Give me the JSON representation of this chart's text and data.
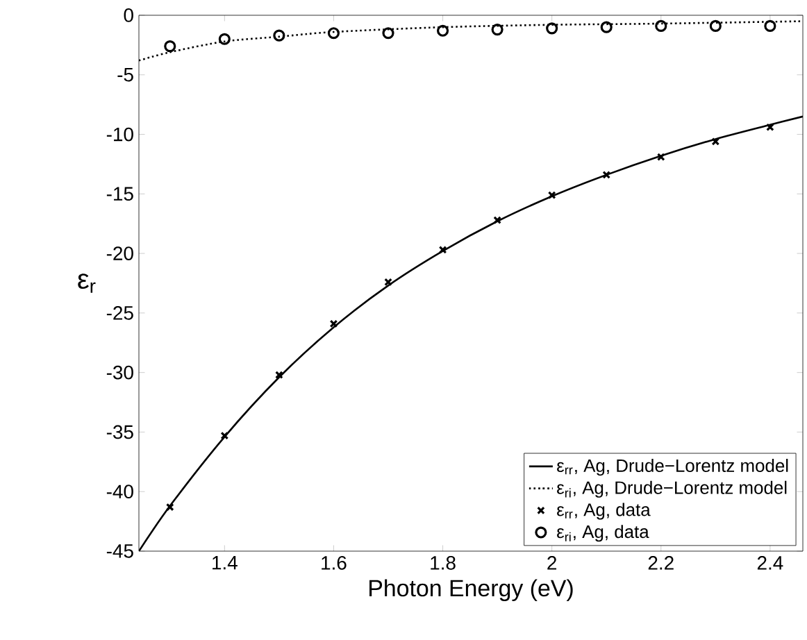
{
  "chart_data": {
    "type": "line",
    "xlabel": "Photon Energy (eV)",
    "ylabel": "ε$_{r}$",
    "xlim": [
      1.243,
      2.46
    ],
    "ylim": [
      -45,
      0
    ],
    "xticks": [
      1.4,
      1.6,
      1.8,
      2,
      2.2,
      2.4
    ],
    "yticks": [
      -45,
      -40,
      -35,
      -30,
      -25,
      -20,
      -15,
      -10,
      -5,
      0
    ],
    "legend": "bottom right",
    "grid": false,
    "series": [
      {
        "name": "ε$_{rr}$, Ag, Drude−Lorentz model",
        "color": "#000000",
        "line_style": "solid",
        "marker": "none",
        "x": [
          1.243,
          1.3,
          1.4,
          1.5,
          1.6,
          1.7,
          1.8,
          1.9,
          2.0,
          2.1,
          2.2,
          2.3,
          2.4,
          2.46
        ],
        "values": [
          -45,
          -41.2,
          -35.4,
          -30.4,
          -26.2,
          -22.7,
          -19.8,
          -17.3,
          -15.2,
          -13.4,
          -11.8,
          -10.4,
          -9.2,
          -8.5
        ]
      },
      {
        "name": "ε$_{ri}$, Ag, Drude−Lorentz model",
        "color": "#000000",
        "line_style": "dotted",
        "marker": "none",
        "x": [
          1.243,
          1.3,
          1.4,
          1.5,
          1.6,
          1.8,
          2.0,
          2.2,
          2.46
        ],
        "values": [
          -3.8,
          -3.1,
          -2.2,
          -1.8,
          -1.4,
          -1.0,
          -0.8,
          -0.7,
          -0.5
        ]
      },
      {
        "name": "ε$_{rr}$, Ag, data",
        "type": "scatter",
        "color": "#000000",
        "marker": "cross",
        "x": [
          1.3,
          1.4,
          1.5,
          1.6,
          1.7,
          1.8,
          1.9,
          2.0,
          2.1,
          2.2,
          2.3,
          2.4
        ],
        "values": [
          -41.3,
          -35.3,
          -30.2,
          -25.9,
          -22.4,
          -19.7,
          -17.2,
          -15.1,
          -13.4,
          -11.9,
          -10.6,
          -9.4
        ]
      },
      {
        "name": "ε$_{ri}$, Ag, data",
        "type": "scatter",
        "color": "#000000",
        "marker": "circle",
        "x": [
          1.3,
          1.4,
          1.5,
          1.6,
          1.7,
          1.8,
          1.9,
          2.0,
          2.1,
          2.2,
          2.3,
          2.4
        ],
        "values": [
          -2.6,
          -2.0,
          -1.7,
          -1.5,
          -1.5,
          -1.3,
          -1.2,
          -1.1,
          -1.0,
          -0.9,
          -0.9,
          -0.9
        ]
      }
    ]
  }
}
